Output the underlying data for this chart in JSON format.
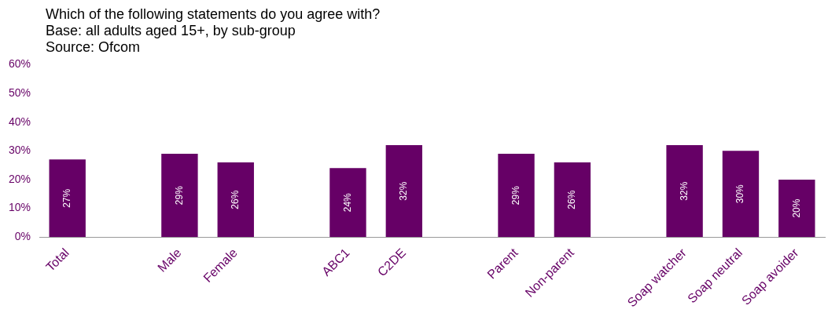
{
  "chart_data": {
    "type": "bar",
    "title": "Which of the following statements do you agree with?",
    "subtitle": "Base: all adults aged 15+, by sub-group",
    "annotations": [
      "Source: Ofcom"
    ],
    "categories": [
      "Total",
      null,
      "Male",
      "Female",
      null,
      "ABC1",
      "C2DE",
      null,
      "Parent",
      "Non-parent",
      null,
      "Soap watcher",
      "Soap neutral",
      "Soap avoider"
    ],
    "values": [
      27,
      null,
      29,
      26,
      null,
      24,
      32,
      null,
      29,
      26,
      null,
      32,
      30,
      20
    ],
    "value_labels": [
      "27%",
      null,
      "29%",
      "26%",
      null,
      "24%",
      "32%",
      null,
      "29%",
      "26%",
      null,
      "32%",
      "30%",
      "20%"
    ],
    "color": "#660066",
    "ylim": [
      0,
      60
    ],
    "yticks": [
      {
        "value": 0,
        "label": "0%"
      },
      {
        "value": 10,
        "label": "10%"
      },
      {
        "value": 20,
        "label": "20%"
      },
      {
        "value": 30,
        "label": "30%"
      },
      {
        "value": 40,
        "label": "40%"
      },
      {
        "value": 50,
        "label": "50%"
      },
      {
        "value": 60,
        "label": "60%"
      }
    ],
    "grid": false,
    "legend": false
  }
}
